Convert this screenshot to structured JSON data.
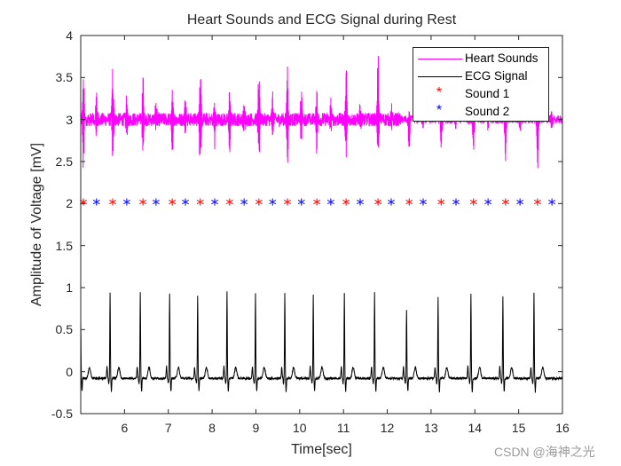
{
  "chart_data": {
    "type": "line",
    "title": "Heart Sounds and ECG Signal during Rest",
    "xlabel": "Time[sec]",
    "ylabel": "Amplitude of Voltage [mV]",
    "xlim": [
      5,
      16
    ],
    "ylim": [
      -0.5,
      4
    ],
    "xticks": [
      6,
      7,
      8,
      9,
      10,
      11,
      12,
      13,
      14,
      15,
      16
    ],
    "xtick_labels": [
      "6",
      "7",
      "8",
      "9",
      "10",
      "11",
      "12",
      "13",
      "14",
      "15",
      "16"
    ],
    "yticks": [
      -0.5,
      0,
      0.5,
      1,
      1.5,
      2,
      2.5,
      3,
      3.5,
      4
    ],
    "ytick_labels": [
      "-0.5",
      "0",
      "0.5",
      "1",
      "1.5",
      "2",
      "2.5",
      "3",
      "3.5",
      "4"
    ],
    "grid": false,
    "legend_position": "northeast",
    "series": [
      {
        "name": "Heart Sounds",
        "kind": "line",
        "color": "#ff00ff",
        "baseline": 3.0,
        "noise_amplitude": 0.08,
        "description": "Phonocardiogram offset to ~3 mV; bursts at each S1/S2 event",
        "bursts": [
          {
            "t": 5.06,
            "max": 3.75,
            "min": 2.27
          },
          {
            "t": 5.36,
            "max": 3.32,
            "min": 2.75
          },
          {
            "t": 5.73,
            "max": 3.75,
            "min": 2.37
          },
          {
            "t": 6.05,
            "max": 3.32,
            "min": 2.75
          },
          {
            "t": 6.42,
            "max": 3.6,
            "min": 2.57
          },
          {
            "t": 6.72,
            "max": 3.22,
            "min": 2.86
          },
          {
            "t": 7.09,
            "max": 3.35,
            "min": 2.6
          },
          {
            "t": 7.39,
            "max": 3.32,
            "min": 2.86
          },
          {
            "t": 7.73,
            "max": 3.78,
            "min": 2.08
          },
          {
            "t": 8.06,
            "max": 3.3,
            "min": 2.7
          },
          {
            "t": 8.4,
            "max": 3.4,
            "min": 2.55
          },
          {
            "t": 8.73,
            "max": 3.18,
            "min": 2.85
          },
          {
            "t": 9.07,
            "max": 3.7,
            "min": 2.45
          },
          {
            "t": 9.38,
            "max": 3.32,
            "min": 2.8
          },
          {
            "t": 9.72,
            "max": 3.75,
            "min": 2.42
          },
          {
            "t": 10.04,
            "max": 3.48,
            "min": 2.62
          },
          {
            "t": 10.39,
            "max": 3.45,
            "min": 2.53
          },
          {
            "t": 10.71,
            "max": 3.28,
            "min": 2.8
          },
          {
            "t": 11.06,
            "max": 3.6,
            "min": 2.55
          },
          {
            "t": 11.38,
            "max": 3.2,
            "min": 2.82
          },
          {
            "t": 11.79,
            "max": 3.78,
            "min": 2.38
          },
          {
            "t": 12.09,
            "max": 3.2,
            "min": 2.85
          },
          {
            "t": 12.5,
            "max": 3.1,
            "min": 2.6
          },
          {
            "t": 12.82,
            "max": 3.1,
            "min": 2.85
          },
          {
            "t": 13.23,
            "max": 3.1,
            "min": 2.65
          },
          {
            "t": 13.57,
            "max": 3.1,
            "min": 2.88
          },
          {
            "t": 13.97,
            "max": 3.1,
            "min": 2.55
          },
          {
            "t": 14.3,
            "max": 3.1,
            "min": 2.85
          },
          {
            "t": 14.7,
            "max": 3.1,
            "min": 2.52
          },
          {
            "t": 15.03,
            "max": 3.08,
            "min": 2.87
          },
          {
            "t": 15.43,
            "max": 3.1,
            "min": 2.35
          },
          {
            "t": 15.76,
            "max": 3.1,
            "min": 2.87
          }
        ]
      },
      {
        "name": "ECG Signal",
        "kind": "line",
        "color": "#000000",
        "baseline": -0.08,
        "description": "ECG with R-peaks near 1 mV",
        "r_peaks": [
          {
            "t": 5.0,
            "amp": 0.68
          },
          {
            "t": 5.67,
            "amp": 1.02
          },
          {
            "t": 6.36,
            "amp": 1.03
          },
          {
            "t": 7.03,
            "amp": 1.02
          },
          {
            "t": 7.67,
            "amp": 0.99
          },
          {
            "t": 8.34,
            "amp": 1.03
          },
          {
            "t": 8.99,
            "amp": 1.02
          },
          {
            "t": 9.66,
            "amp": 1.02
          },
          {
            "t": 10.31,
            "amp": 0.99
          },
          {
            "t": 11.02,
            "amp": 1.02
          },
          {
            "t": 11.71,
            "amp": 1.02
          },
          {
            "t": 12.44,
            "amp": 0.82
          },
          {
            "t": 13.16,
            "amp": 0.98
          },
          {
            "t": 13.91,
            "amp": 1.02
          },
          {
            "t": 14.64,
            "amp": 0.98
          },
          {
            "t": 15.35,
            "amp": 1.02
          }
        ]
      },
      {
        "name": "Sound 1",
        "kind": "scatter",
        "marker": "*",
        "color": "#ff0000",
        "y": 2,
        "x": [
          5.06,
          5.73,
          6.42,
          7.09,
          7.73,
          8.4,
          9.07,
          9.72,
          10.39,
          11.06,
          11.79,
          12.5,
          13.23,
          13.97,
          14.7,
          15.43
        ]
      },
      {
        "name": "Sound 2",
        "kind": "scatter",
        "marker": "*",
        "color": "#0000ff",
        "y": 2,
        "x": [
          5.36,
          6.05,
          6.72,
          7.39,
          8.06,
          8.73,
          9.38,
          10.04,
          10.71,
          11.38,
          12.09,
          12.82,
          13.57,
          14.3,
          15.03,
          15.76
        ]
      }
    ]
  },
  "legend": {
    "items": [
      {
        "label": "Heart Sounds",
        "type": "line",
        "color": "#ff00ff"
      },
      {
        "label": "ECG Signal",
        "type": "line",
        "color": "#000000"
      },
      {
        "label": "Sound 1",
        "type": "marker",
        "color": "#ff0000",
        "glyph": "*"
      },
      {
        "label": "Sound 2",
        "type": "marker",
        "color": "#0000ff",
        "glyph": "*"
      }
    ]
  },
  "watermark": "CSDN @海神之光"
}
